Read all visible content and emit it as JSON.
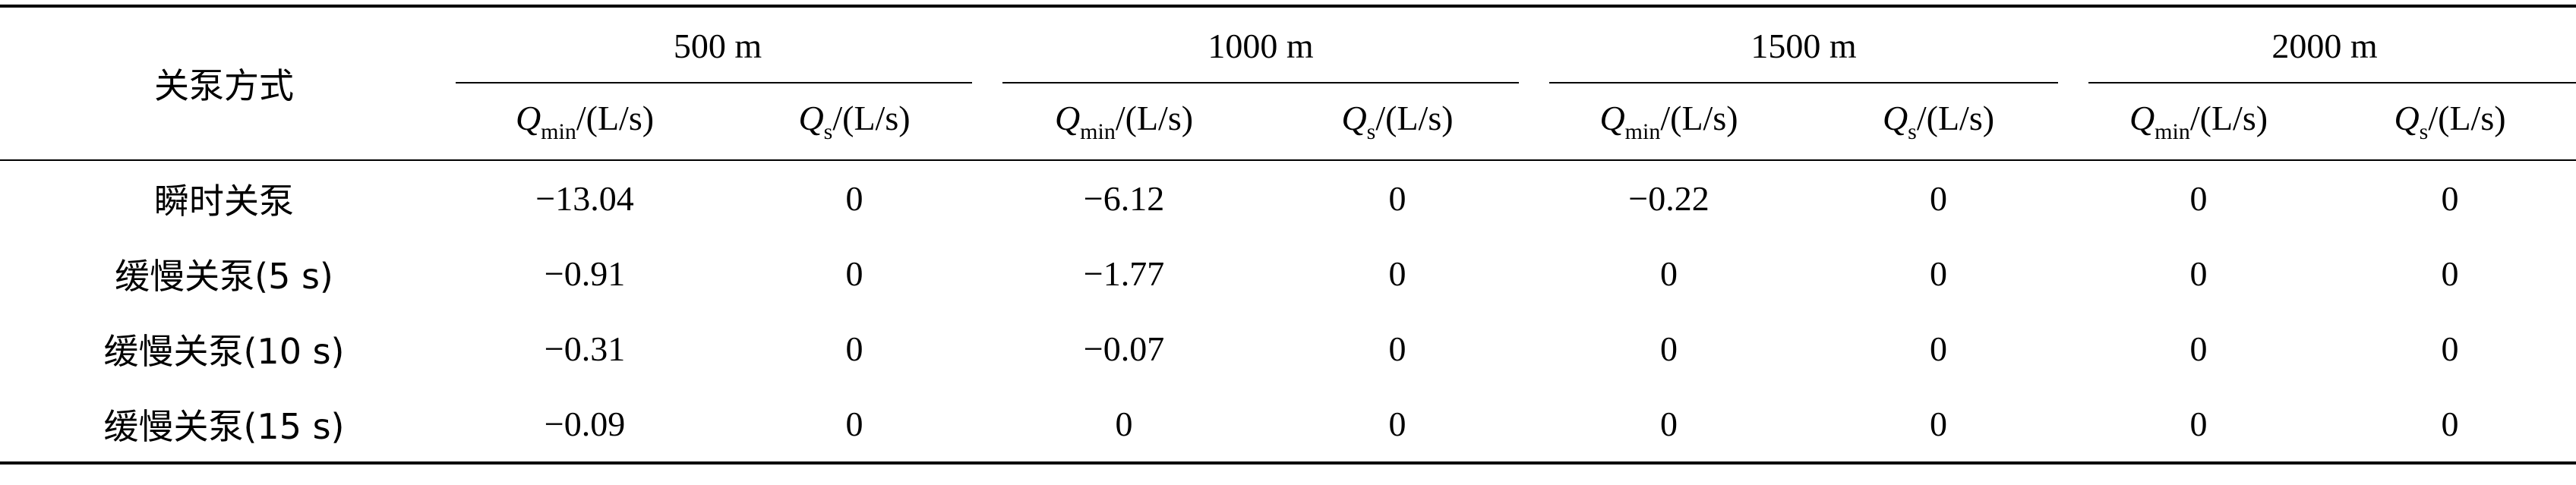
{
  "table": {
    "row_header": "关泵方式",
    "groups": [
      "500 m",
      "1000 m",
      "1500 m",
      "2000 m"
    ],
    "subcolumns": [
      {
        "symbol": "Q",
        "sub": "min",
        "unit": "/(L/s)"
      },
      {
        "symbol": "Q",
        "sub": "s",
        "unit": "/(L/s)"
      }
    ],
    "rows": [
      {
        "label": "瞬时关泵",
        "values": [
          "−13.04",
          "0",
          "−6.12",
          "0",
          "−0.22",
          "0",
          "0",
          "0"
        ]
      },
      {
        "label": "缓慢关泵(5 s)",
        "values": [
          "−0.91",
          "0",
          "−1.77",
          "0",
          "0",
          "0",
          "0",
          "0"
        ]
      },
      {
        "label": "缓慢关泵(10 s)",
        "values": [
          "−0.31",
          "0",
          "−0.07",
          "0",
          "0",
          "0",
          "0",
          "0"
        ]
      },
      {
        "label": "缓慢关泵(15 s)",
        "values": [
          "−0.09",
          "0",
          "0",
          "0",
          "0",
          "0",
          "0",
          "0"
        ]
      }
    ]
  }
}
